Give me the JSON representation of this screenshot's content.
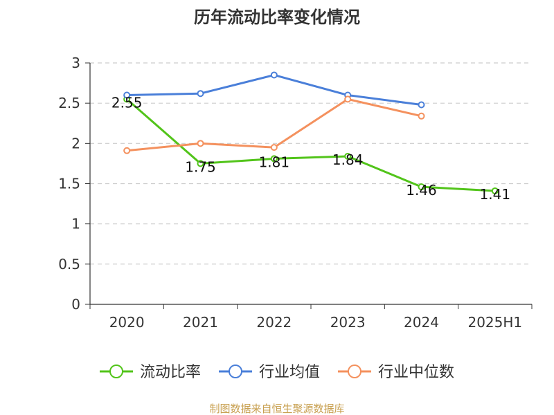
{
  "chart_data": {
    "type": "line",
    "title": "历年流动比率变化情况",
    "categories": [
      "2020",
      "2021",
      "2022",
      "2023",
      "2024",
      "2025H1"
    ],
    "ylim": [
      0,
      3
    ],
    "yticks": [
      "0",
      "0.5",
      "1",
      "1.5",
      "2",
      "2.5",
      "3"
    ],
    "grid": true,
    "legend_position": "bottom",
    "series": [
      {
        "name": "流动比率",
        "color": "#52C41A",
        "values": [
          2.55,
          1.75,
          1.81,
          1.84,
          1.46,
          1.41
        ],
        "labels": [
          "2.55",
          "1.75",
          "1.81",
          "1.84",
          "1.46",
          "1.41"
        ]
      },
      {
        "name": "行业均值",
        "color": "#4A7FD9",
        "values": [
          2.6,
          2.62,
          2.85,
          2.6,
          2.48,
          null
        ]
      },
      {
        "name": "行业中位数",
        "color": "#F4915E",
        "values": [
          1.91,
          2.0,
          1.95,
          2.55,
          2.34,
          null
        ]
      }
    ]
  },
  "footer": {
    "source": "制图数据来自恒生聚源数据库"
  }
}
